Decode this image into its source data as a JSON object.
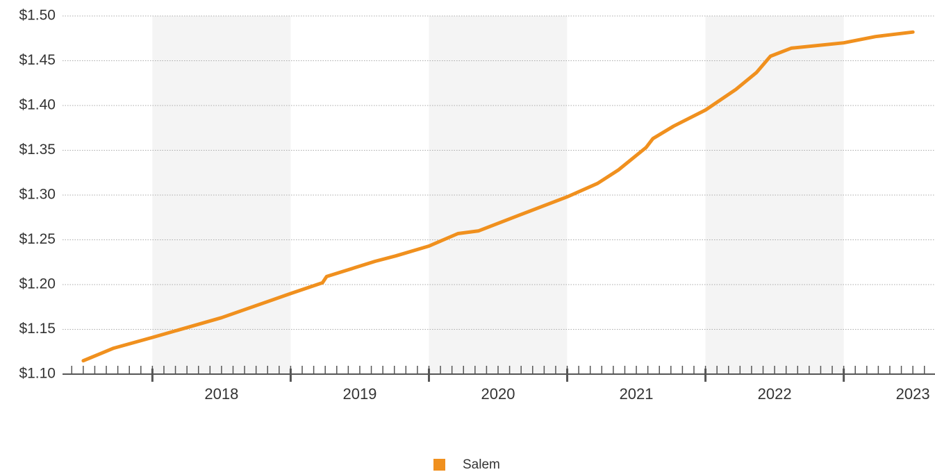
{
  "chart_data": {
    "type": "line",
    "x": [
      2017.5,
      2017.72,
      2018.0,
      2018.5,
      2019.0,
      2019.23,
      2019.26,
      2019.61,
      2019.76,
      2020.0,
      2020.21,
      2020.36,
      2020.66,
      2021.0,
      2021.22,
      2021.37,
      2021.57,
      2021.62,
      2021.77,
      2022.0,
      2022.22,
      2022.37,
      2022.47,
      2022.62,
      2023.0,
      2023.23,
      2023.5
    ],
    "series": [
      {
        "name": "Salem",
        "color": "#f0901e",
        "values": [
          1.115,
          1.129,
          1.141,
          1.163,
          1.19,
          1.202,
          1.209,
          1.226,
          1.232,
          1.243,
          1.257,
          1.26,
          1.278,
          1.298,
          1.313,
          1.328,
          1.353,
          1.363,
          1.377,
          1.395,
          1.418,
          1.437,
          1.455,
          1.464,
          1.47,
          1.477,
          1.482
        ]
      }
    ],
    "xlim": [
      2017.35,
      2023.66
    ],
    "xticks": [
      2018,
      2019,
      2020,
      2021,
      2022,
      2023
    ],
    "ylim": [
      1.1,
      1.5
    ],
    "yticks": [
      {
        "value": 1.1,
        "label": "$1.10"
      },
      {
        "value": 1.15,
        "label": "$1.15"
      },
      {
        "value": 1.2,
        "label": "$1.20"
      },
      {
        "value": 1.25,
        "label": "$1.25"
      },
      {
        "value": 1.3,
        "label": "$1.30"
      },
      {
        "value": 1.35,
        "label": "$1.35"
      },
      {
        "value": 1.4,
        "label": "$1.40"
      },
      {
        "value": 1.45,
        "label": "$1.45"
      },
      {
        "value": 1.5,
        "label": "$1.50"
      }
    ],
    "grid": true,
    "legend": "bottom"
  }
}
